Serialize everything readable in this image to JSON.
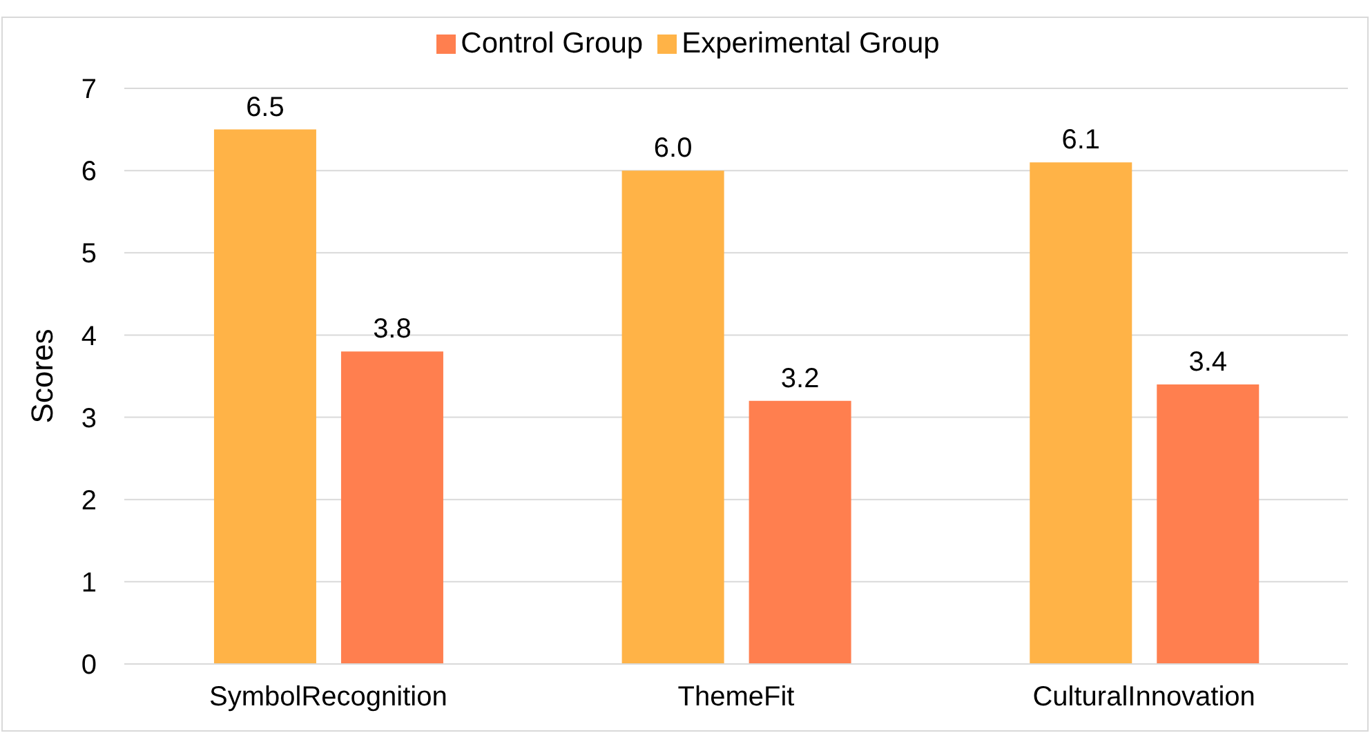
{
  "chart_data": {
    "type": "bar",
    "ylabel": "Scores",
    "categories": [
      "SymbolRecognition",
      "ThemeFit",
      "CulturalInnovation"
    ],
    "series": [
      {
        "name": "Experimental Group",
        "color": "#ffb347",
        "values": [
          6.5,
          6.0,
          6.1
        ],
        "value_labels": [
          "6.5",
          "6.0",
          "6.1"
        ]
      },
      {
        "name": "Control Group",
        "color": "#ff7f4f",
        "values": [
          3.8,
          3.2,
          3.4
        ],
        "value_labels": [
          "3.8",
          "3.2",
          "3.4"
        ]
      }
    ],
    "ylim": [
      0,
      7
    ],
    "yticks": [
      0,
      1,
      2,
      3,
      4,
      5,
      6,
      7
    ],
    "grid": "y",
    "legend": "top"
  }
}
